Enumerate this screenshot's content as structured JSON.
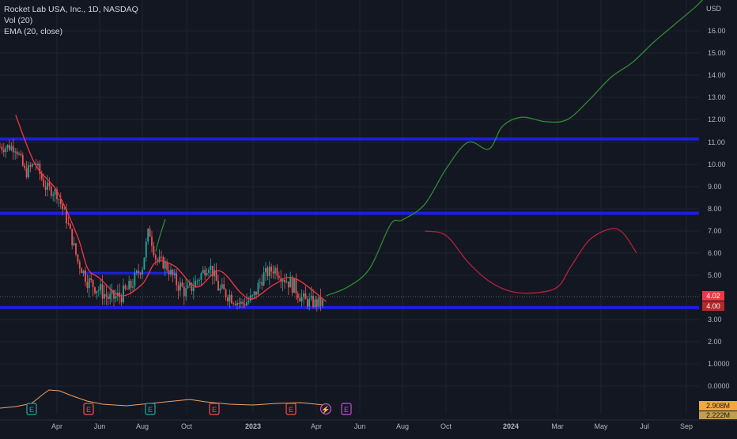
{
  "legend": {
    "title": "Rocket Lab USA, Inc., 1D, NASDAQ",
    "vol": "Vol (20)",
    "ema": "EMA (20, close)"
  },
  "colors": {
    "background": "#131722",
    "grid": "#1f2330",
    "axis_text": "#b2b5be",
    "h_lines": "#1c1fe0",
    "ema": "#f23645",
    "volume": "#f0a060",
    "projection_up": "#2e8b2e",
    "projection_down": "#b2243a",
    "candle_up": "#26a69a",
    "candle_down": "#ef5350",
    "price_badge": "#f23645",
    "vol_badge": "#f0a93e"
  },
  "chart_data": {
    "type": "line",
    "title": "Rocket Lab USA, Inc., 1D, NASDAQ",
    "ylabel": "USD",
    "y_scale": "log",
    "ylim": [
      0.0,
      18.0
    ],
    "y_ticks": [
      "16.00",
      "15.00",
      "14.00",
      "13.00",
      "12.00",
      "11.00",
      "10.00",
      "9.00",
      "8.00",
      "7.00",
      "6.00",
      "5.00",
      "3.00",
      "2.00",
      "1.0000",
      "0.0000"
    ],
    "x_ticks": [
      "Apr",
      "Jun",
      "Aug",
      "Oct",
      "2023",
      "Apr",
      "Jun",
      "Aug",
      "Oct",
      "2024",
      "Mar",
      "May",
      "Jul",
      "Sep"
    ],
    "horizontal_levels": [
      11.15,
      7.8,
      5.1,
      3.8
    ],
    "price_label": "4.02",
    "level_label": "4.00",
    "volume_labels": [
      "2.908M",
      "2.222M"
    ],
    "event_markers": [
      "E",
      "E",
      "E",
      "E",
      "E",
      "⚡",
      "E"
    ],
    "price": {
      "x": [
        "2022-02-01",
        "2022-02-15",
        "2022-03-01",
        "2022-03-15",
        "2022-04-01",
        "2022-04-15",
        "2022-05-01",
        "2022-05-15",
        "2022-06-01",
        "2022-06-15",
        "2022-07-01",
        "2022-07-15",
        "2022-08-01",
        "2022-08-10",
        "2022-08-20",
        "2022-09-01",
        "2022-09-15",
        "2022-10-01",
        "2022-10-15",
        "2022-11-01",
        "2022-11-15",
        "2022-12-01",
        "2022-12-15",
        "2023-01-01",
        "2023-01-15",
        "2023-02-01",
        "2023-02-15",
        "2023-03-01",
        "2023-03-15",
        "2023-04-01",
        "2023-04-15"
      ],
      "y": [
        10.8,
        9.6,
        10.1,
        9.0,
        8.7,
        7.5,
        5.6,
        4.8,
        4.5,
        4.2,
        4.3,
        4.6,
        5.4,
        7.1,
        5.7,
        5.5,
        4.8,
        4.4,
        4.8,
        5.5,
        4.5,
        4.3,
        4.0,
        4.2,
        5.0,
        5.3,
        4.9,
        4.6,
        4.1,
        4.0,
        4.02
      ]
    },
    "ema_line": {
      "x": [
        "2022-02-01",
        "2022-03-01",
        "2022-04-01",
        "2022-05-01",
        "2022-05-15",
        "2022-06-01",
        "2022-07-01",
        "2022-08-01",
        "2022-08-20",
        "2022-09-15",
        "2022-10-15",
        "2022-11-15",
        "2022-12-15",
        "2023-01-01",
        "2023-02-01",
        "2023-03-01",
        "2023-04-15"
      ],
      "y": [
        12.2,
        10.0,
        8.8,
        6.7,
        5.3,
        4.9,
        4.3,
        4.7,
        5.6,
        5.4,
        4.6,
        5.2,
        4.4,
        4.2,
        4.7,
        4.9,
        4.1
      ]
    },
    "series": [
      {
        "x": [
          "2023-04-15",
          "2023-05-15",
          "2023-06-15",
          "2023-07-15",
          "2023-08-01",
          "2023-09-01",
          "2023-10-01",
          "2023-11-01",
          "2023-12-01",
          "2023-12-20",
          "2024-01-15",
          "2024-02-15",
          "2024-03-15",
          "2024-04-15",
          "2024-05-15",
          "2024-06-15",
          "2024-07-15",
          "2024-08-15",
          "2024-09-15",
          "2024-10-01"
        ],
        "y": [
          4.3,
          4.6,
          5.3,
          7.3,
          7.5,
          8.2,
          9.8,
          11.0,
          10.7,
          11.7,
          12.1,
          11.9,
          12.0,
          12.9,
          13.9,
          14.6,
          15.5,
          16.3,
          17.1,
          17.6
        ]
      },
      {
        "x": [
          "2023-09-01",
          "2023-10-01",
          "2023-11-01",
          "2023-12-01",
          "2024-01-01",
          "2024-02-01",
          "2024-03-01",
          "2024-03-20",
          "2024-04-15",
          "2024-05-15",
          "2024-06-01",
          "2024-06-20"
        ],
        "y": [
          7.0,
          6.8,
          5.6,
          4.8,
          4.45,
          4.4,
          4.6,
          5.4,
          6.6,
          7.1,
          6.9,
          6.0
        ]
      }
    ]
  }
}
